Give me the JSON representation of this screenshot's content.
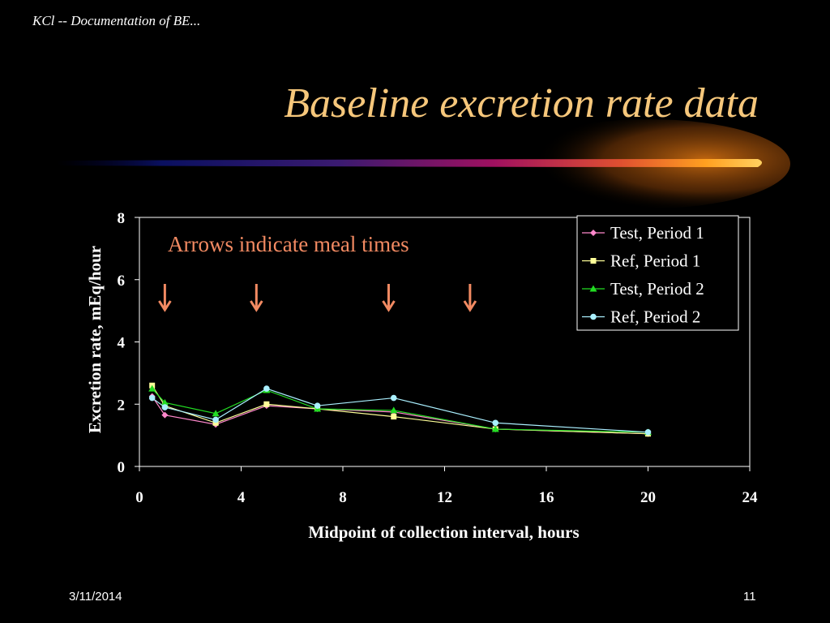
{
  "slide": {
    "header": "KCl -- Documentation of BE...",
    "title": "Baseline excretion rate data",
    "date": "3/11/2014",
    "page_number": "11"
  },
  "colors": {
    "title": "#f6c77b",
    "annotation": "#f28a62",
    "arrow": "#f28a62",
    "test_period_1": "#ff88cc",
    "ref_period_1": "#ffff99",
    "test_period_2": "#22dd22",
    "ref_period_2": "#aaf0ff"
  },
  "chart_data": {
    "type": "line",
    "xlabel": "Midpoint of collection interval, hours",
    "ylabel": "Excretion rate, mEq/hour",
    "xlim": [
      0,
      24
    ],
    "ylim": [
      0,
      8
    ],
    "xticks": [
      0,
      4,
      8,
      12,
      16,
      20,
      24
    ],
    "yticks": [
      0,
      2,
      4,
      6,
      8
    ],
    "grid": false,
    "legend_position": "top-right",
    "annotation": "Arrows indicate meal times",
    "meal_arrows_x": [
      1,
      4.6,
      9.8,
      13
    ],
    "series": [
      {
        "name": "Test, Period 1",
        "marker": "diamond",
        "color": "#ff88cc",
        "x": [
          0.5,
          1,
          3,
          5,
          7,
          10,
          14,
          20
        ],
        "y": [
          2.25,
          1.65,
          1.35,
          1.95,
          1.85,
          1.75,
          1.2,
          1.05
        ]
      },
      {
        "name": "Ref, Period 1",
        "marker": "square",
        "color": "#ffff99",
        "x": [
          0.5,
          1,
          3,
          5,
          7,
          10,
          14,
          20
        ],
        "y": [
          2.6,
          1.95,
          1.4,
          2.0,
          1.85,
          1.6,
          1.2,
          1.05
        ]
      },
      {
        "name": "Test, Period 2",
        "marker": "triangle",
        "color": "#22dd22",
        "x": [
          0.5,
          1,
          3,
          5,
          7,
          10,
          14,
          20
        ],
        "y": [
          2.5,
          2.05,
          1.7,
          2.45,
          1.85,
          1.8,
          1.2,
          1.1
        ]
      },
      {
        "name": "Ref, Period 2",
        "marker": "circle",
        "color": "#aaf0ff",
        "x": [
          0.5,
          1,
          3,
          5,
          7,
          10,
          14,
          20
        ],
        "y": [
          2.2,
          1.9,
          1.5,
          2.5,
          1.95,
          2.2,
          1.4,
          1.1
        ]
      }
    ]
  }
}
